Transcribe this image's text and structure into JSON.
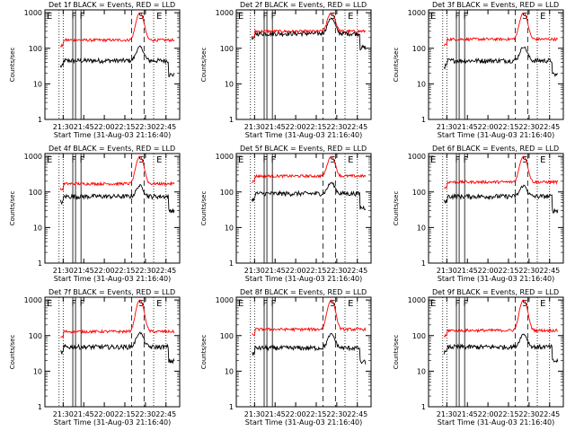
{
  "xlabel": "Start Time (31-Aug-03 21:16:40)",
  "ylabel": "Counts/sec",
  "x_ticks": [
    "21:30",
    "21:45",
    "22:00",
    "22:15",
    "22:30",
    "22:45"
  ],
  "y_ticks": [
    "1",
    "10",
    "100",
    "1000"
  ],
  "region_letters": {
    "E": "E",
    "F": "F",
    "S": "S"
  },
  "colors": {
    "events": "#000000",
    "lld": "#ff0000"
  },
  "chart_data": [
    {
      "type": "line",
      "title": "Det 1f BLACK = Events, RED = LLD",
      "xrange": [
        "21:16:40",
        "22:55"
      ],
      "ylim": [
        1,
        1200
      ],
      "yscale": "log",
      "series": [
        {
          "name": "BLACK = Events",
          "base": 45
        },
        {
          "name": "RED = LLD",
          "base": 170
        }
      ],
      "peak": {
        "time": "22:26",
        "lld": 1000,
        "events": 110
      }
    },
    {
      "type": "line",
      "title": "Det 2f BLACK = Events, RED = LLD",
      "xrange": [
        "21:16:40",
        "22:55"
      ],
      "ylim": [
        1,
        1200
      ],
      "yscale": "log",
      "series": [
        {
          "name": "BLACK = Events",
          "base": 260
        },
        {
          "name": "RED = LLD",
          "base": 300
        }
      ],
      "peak": {
        "time": "22:26",
        "lld": 1000,
        "events": 700
      }
    },
    {
      "type": "line",
      "title": "Det 3f BLACK = Events, RED = LLD",
      "xrange": [
        "21:16:40",
        "22:55"
      ],
      "ylim": [
        1,
        1200
      ],
      "yscale": "log",
      "series": [
        {
          "name": "BLACK = Events",
          "base": 45
        },
        {
          "name": "RED = LLD",
          "base": 180
        }
      ],
      "peak": {
        "time": "22:26",
        "lld": 1000,
        "events": 110
      }
    },
    {
      "type": "line",
      "title": "Det 4f BLACK = Events, RED = LLD",
      "xrange": [
        "21:16:40",
        "22:55"
      ],
      "ylim": [
        1,
        1200
      ],
      "yscale": "log",
      "series": [
        {
          "name": "BLACK = Events",
          "base": 75
        },
        {
          "name": "RED = LLD",
          "base": 170
        }
      ],
      "peak": {
        "time": "22:26",
        "lld": 1000,
        "events": 150
      }
    },
    {
      "type": "line",
      "title": "Det 5f BLACK = Events, RED = LLD",
      "xrange": [
        "21:16:40",
        "22:55"
      ],
      "ylim": [
        1,
        1200
      ],
      "yscale": "log",
      "series": [
        {
          "name": "BLACK = Events",
          "base": 90
        },
        {
          "name": "RED = LLD",
          "base": 280
        }
      ],
      "peak": {
        "time": "22:26",
        "lld": 1000,
        "events": 180
      }
    },
    {
      "type": "line",
      "title": "Det 6f BLACK = Events, RED = LLD",
      "xrange": [
        "21:16:40",
        "22:55"
      ],
      "ylim": [
        1,
        1200
      ],
      "yscale": "log",
      "series": [
        {
          "name": "BLACK = Events",
          "base": 75
        },
        {
          "name": "RED = LLD",
          "base": 190
        }
      ],
      "peak": {
        "time": "22:26",
        "lld": 1000,
        "events": 150
      }
    },
    {
      "type": "line",
      "title": "Det 7f BLACK = Events, RED = LLD",
      "xrange": [
        "21:16:40",
        "22:55"
      ],
      "ylim": [
        1,
        1200
      ],
      "yscale": "log",
      "series": [
        {
          "name": "BLACK = Events",
          "base": 48
        },
        {
          "name": "RED = LLD",
          "base": 130
        }
      ],
      "peak": {
        "time": "22:26",
        "lld": 1000,
        "events": 120
      }
    },
    {
      "type": "line",
      "title": "Det 8f BLACK = Events, RED = LLD",
      "xrange": [
        "21:16:40",
        "22:55"
      ],
      "ylim": [
        1,
        1200
      ],
      "yscale": "log",
      "series": [
        {
          "name": "BLACK = Events",
          "base": 45
        },
        {
          "name": "RED = LLD",
          "base": 150
        }
      ],
      "peak": {
        "time": "22:26",
        "lld": 1000,
        "events": 110
      }
    },
    {
      "type": "line",
      "title": "Det 9f BLACK = Events, RED = LLD",
      "xrange": [
        "21:16:40",
        "22:55"
      ],
      "ylim": [
        1,
        1200
      ],
      "yscale": "log",
      "series": [
        {
          "name": "BLACK = Events",
          "base": 48
        },
        {
          "name": "RED = LLD",
          "base": 140
        }
      ],
      "peak": {
        "time": "22:26",
        "lld": 1000,
        "events": 110
      }
    }
  ]
}
